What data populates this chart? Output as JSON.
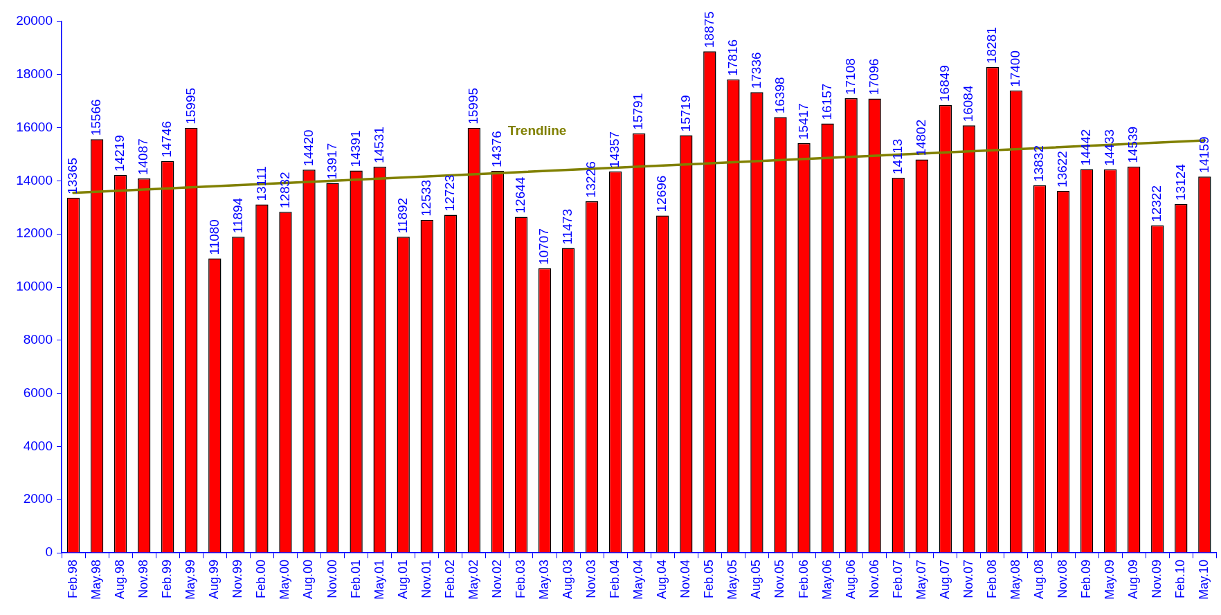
{
  "chart_data": {
    "type": "bar",
    "categories": [
      "Feb.98",
      "May.98",
      "Aug.98",
      "Nov.98",
      "Feb.99",
      "May.99",
      "Aug.99",
      "Nov.99",
      "Feb.00",
      "May.00",
      "Aug.00",
      "Nov.00",
      "Feb.01",
      "May.01",
      "Aug.01",
      "Nov.01",
      "Feb.02",
      "May.02",
      "Nov.02",
      "Feb.03",
      "May.03",
      "Aug.03",
      "Nov.03",
      "Feb.04",
      "May.04",
      "Aug.04",
      "Nov.04",
      "Feb.05",
      "May.05",
      "Aug.05",
      "Nov.05",
      "Feb.06",
      "May.06",
      "Aug.06",
      "Nov.06",
      "Feb.07",
      "May.07",
      "Aug.07",
      "Nov.07",
      "Feb.08",
      "May.08",
      "Aug.08",
      "Nov.08",
      "Feb.09",
      "May.09",
      "Aug.09",
      "Nov.09",
      "Feb.10",
      "May.10"
    ],
    "series": [
      {
        "color": "#ff0000",
        "values": [
          13365,
          15566,
          14219,
          14087,
          14746,
          15995,
          11080,
          11894,
          13111,
          12832,
          14420,
          13917,
          14391,
          14531,
          11892,
          12533,
          12723,
          15995,
          14376,
          12644,
          10707,
          11473,
          13226,
          14357,
          15791,
          12696,
          15719,
          18875,
          17816,
          17336,
          16398,
          15417,
          16157,
          17108,
          17096,
          14113,
          14802,
          16849,
          16084,
          18281,
          17400,
          13832,
          13622,
          14442,
          14433,
          14539,
          12322,
          13124,
          14159
        ],
        "value_labels": [
          "13365",
          "15566",
          "14219",
          "14087",
          "14746",
          "15995",
          "11080",
          "11894",
          "13111",
          "12832",
          "14420",
          "13917",
          "14391",
          "14531",
          "11892",
          "12533",
          "12723",
          "15995",
          "14376",
          "12644",
          "10707",
          "11473",
          "13226",
          "14357",
          "15791",
          "12696",
          "15719",
          "18875",
          "17816",
          "17336",
          "16398",
          "15417",
          "16157",
          "17108",
          "17096",
          "14113",
          "14802",
          "16849",
          "16084",
          "18281",
          "17400",
          "13832",
          "13622",
          "14442",
          "14433",
          "14539",
          "12322",
          "13124",
          "14159"
        ]
      },
      {
        "type": "line",
        "name": "Trendline",
        "color": "#808000",
        "x": [
          "Feb.98",
          "May.10"
        ],
        "values": [
          13550,
          15520
        ]
      }
    ],
    "ylim": [
      0,
      20000
    ],
    "yticks": [
      0,
      2000,
      4000,
      6000,
      8000,
      10000,
      12000,
      14000,
      16000,
      18000,
      20000
    ],
    "grid": false,
    "legend": false
  }
}
